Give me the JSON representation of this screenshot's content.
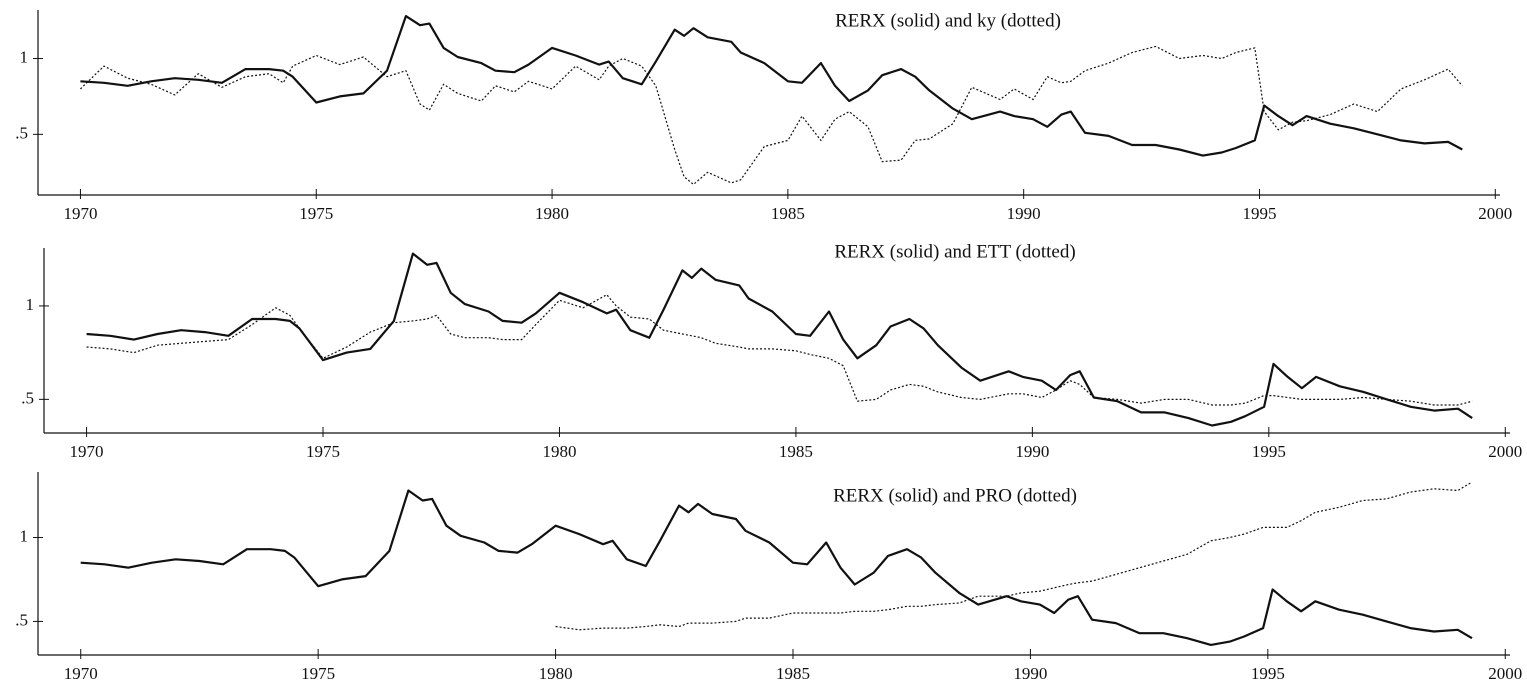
{
  "chart_data": [
    {
      "type": "line",
      "title": "RERX (solid) and ky (dotted)",
      "x": [
        1970,
        1970.5,
        1971,
        1971.5,
        1972,
        1972.5,
        1973,
        1973.5,
        1974,
        1974.3,
        1974.5,
        1975,
        1975.5,
        1976,
        1976.5,
        1976.9,
        1977.2,
        1977.4,
        1977.7,
        1978,
        1978.5,
        1978.8,
        1979.2,
        1979.5,
        1980,
        1980.5,
        1981,
        1981.2,
        1981.5,
        1981.9,
        1982.2,
        1982.6,
        1982.8,
        1983,
        1983.3,
        1983.8,
        1984,
        1984.5,
        1985,
        1985.3,
        1985.7,
        1986,
        1986.3,
        1986.7,
        1987,
        1987.4,
        1987.7,
        1988,
        1988.5,
        1988.9,
        1989.5,
        1989.8,
        1990.2,
        1990.5,
        1990.8,
        1991,
        1991.3,
        1991.8,
        1992.3,
        1992.8,
        1993.3,
        1993.8,
        1994.2,
        1994.5,
        1994.9,
        1995.1,
        1995.4,
        1995.7,
        1996,
        1996.5,
        1997,
        1997.5,
        1998,
        1998.5,
        1999,
        1999.3
      ],
      "series": [
        {
          "color": "#111111",
          "line_style": "solid",
          "values": [
            0.85,
            0.84,
            0.82,
            0.85,
            0.87,
            0.86,
            0.84,
            0.93,
            0.93,
            0.92,
            0.88,
            0.71,
            0.75,
            0.77,
            0.92,
            1.28,
            1.22,
            1.23,
            1.07,
            1.01,
            0.97,
            0.92,
            0.91,
            0.96,
            1.07,
            1.02,
            0.96,
            0.98,
            0.87,
            0.83,
            0.98,
            1.19,
            1.15,
            1.2,
            1.14,
            1.11,
            1.04,
            0.97,
            0.85,
            0.84,
            0.97,
            0.82,
            0.72,
            0.79,
            0.89,
            0.93,
            0.88,
            0.79,
            0.67,
            0.6,
            0.65,
            0.62,
            0.6,
            0.55,
            0.63,
            0.65,
            0.51,
            0.49,
            0.43,
            0.43,
            0.4,
            0.36,
            0.38,
            0.41,
            0.46,
            0.69,
            0.62,
            0.56,
            0.62,
            0.57,
            0.54,
            0.5,
            0.46,
            0.44,
            0.45,
            0.4
          ]
        },
        {
          "color": "#111111",
          "line_style": "dotted",
          "values": [
            0.8,
            0.95,
            0.87,
            0.83,
            0.76,
            0.9,
            0.81,
            0.88,
            0.9,
            0.84,
            0.95,
            1.02,
            0.96,
            1.01,
            0.88,
            0.92,
            0.7,
            0.66,
            0.83,
            0.77,
            0.72,
            0.82,
            0.78,
            0.85,
            0.8,
            0.95,
            0.86,
            0.95,
            1.0,
            0.95,
            0.82,
            0.4,
            0.22,
            0.17,
            0.25,
            0.18,
            0.2,
            0.42,
            0.46,
            0.62,
            0.46,
            0.6,
            0.65,
            0.55,
            0.32,
            0.33,
            0.46,
            0.47,
            0.57,
            0.81,
            0.73,
            0.8,
            0.73,
            0.88,
            0.84,
            0.85,
            0.92,
            0.97,
            1.04,
            1.08,
            1.0,
            1.02,
            1.0,
            1.04,
            1.07,
            0.65,
            0.53,
            0.58,
            0.59,
            0.63,
            0.7,
            0.65,
            0.8,
            0.86,
            0.93,
            0.82
          ]
        }
      ],
      "xlim": [
        1969.1,
        2000.1
      ],
      "xticks": [
        1970,
        1975,
        1980,
        1985,
        1990,
        1995,
        2000
      ],
      "ylim": [
        0.1,
        1.32
      ],
      "yticks": [
        {
          "value": 0.5,
          "label": ".5"
        },
        1
      ]
    },
    {
      "type": "line",
      "title": "RERX (solid) and ETT (dotted)",
      "x": [
        1970,
        1970.5,
        1971,
        1971.5,
        1972,
        1972.5,
        1973,
        1973.5,
        1974,
        1974.3,
        1974.5,
        1975,
        1975.5,
        1976,
        1976.5,
        1976.9,
        1977.2,
        1977.4,
        1977.7,
        1978,
        1978.5,
        1978.8,
        1979.2,
        1979.5,
        1980,
        1980.5,
        1981,
        1981.2,
        1981.5,
        1981.9,
        1982.2,
        1982.6,
        1982.8,
        1983,
        1983.3,
        1983.8,
        1984,
        1984.5,
        1985,
        1985.3,
        1985.7,
        1986,
        1986.3,
        1986.7,
        1987,
        1987.4,
        1987.7,
        1988,
        1988.5,
        1988.9,
        1989.5,
        1989.8,
        1990.2,
        1990.5,
        1990.8,
        1991,
        1991.3,
        1991.8,
        1992.3,
        1992.8,
        1993.3,
        1993.8,
        1994.2,
        1994.5,
        1994.9,
        1995.1,
        1995.4,
        1995.7,
        1996,
        1996.5,
        1997,
        1997.5,
        1998,
        1998.5,
        1999,
        1999.3
      ],
      "series": [
        {
          "color": "#111111",
          "line_style": "solid",
          "values": [
            0.85,
            0.84,
            0.82,
            0.85,
            0.87,
            0.86,
            0.84,
            0.93,
            0.93,
            0.92,
            0.88,
            0.71,
            0.75,
            0.77,
            0.92,
            1.28,
            1.22,
            1.23,
            1.07,
            1.01,
            0.97,
            0.92,
            0.91,
            0.96,
            1.07,
            1.02,
            0.96,
            0.98,
            0.87,
            0.83,
            0.98,
            1.19,
            1.15,
            1.2,
            1.14,
            1.11,
            1.04,
            0.97,
            0.85,
            0.84,
            0.97,
            0.82,
            0.72,
            0.79,
            0.89,
            0.93,
            0.88,
            0.79,
            0.67,
            0.6,
            0.65,
            0.62,
            0.6,
            0.55,
            0.63,
            0.65,
            0.51,
            0.49,
            0.43,
            0.43,
            0.4,
            0.36,
            0.38,
            0.41,
            0.46,
            0.69,
            0.62,
            0.56,
            0.62,
            0.57,
            0.54,
            0.5,
            0.46,
            0.44,
            0.45,
            0.4
          ]
        },
        {
          "color": "#111111",
          "line_style": "dotted",
          "values": [
            0.78,
            0.77,
            0.75,
            0.79,
            0.8,
            0.81,
            0.82,
            0.9,
            0.99,
            0.95,
            0.88,
            0.72,
            0.78,
            0.86,
            0.91,
            0.92,
            0.93,
            0.95,
            0.85,
            0.83,
            0.83,
            0.82,
            0.82,
            0.9,
            1.03,
            0.99,
            1.06,
            1.0,
            0.94,
            0.93,
            0.87,
            0.85,
            0.84,
            0.83,
            0.8,
            0.78,
            0.77,
            0.77,
            0.76,
            0.74,
            0.72,
            0.68,
            0.49,
            0.5,
            0.55,
            0.58,
            0.57,
            0.54,
            0.51,
            0.5,
            0.53,
            0.53,
            0.51,
            0.55,
            0.6,
            0.58,
            0.51,
            0.5,
            0.48,
            0.5,
            0.5,
            0.47,
            0.47,
            0.48,
            0.52,
            0.52,
            0.51,
            0.5,
            0.5,
            0.5,
            0.51,
            0.5,
            0.49,
            0.47,
            0.47,
            0.49
          ]
        }
      ],
      "xlim": [
        1969.1,
        2000.1
      ],
      "xticks": [
        1970,
        1975,
        1980,
        1985,
        1990,
        1995,
        2000
      ],
      "ylim": [
        0.32,
        1.31
      ],
      "yticks": [
        {
          "value": 0.5,
          "label": ".5"
        },
        1
      ]
    },
    {
      "type": "line",
      "title": "RERX (solid) and PRO (dotted)",
      "x": [
        1970,
        1970.5,
        1971,
        1971.5,
        1972,
        1972.5,
        1973,
        1973.5,
        1974,
        1974.3,
        1974.5,
        1975,
        1975.5,
        1976,
        1976.5,
        1976.9,
        1977.2,
        1977.4,
        1977.7,
        1978,
        1978.5,
        1978.8,
        1979.2,
        1979.5,
        1980,
        1980.5,
        1981,
        1981.2,
        1981.5,
        1981.9,
        1982.2,
        1982.6,
        1982.8,
        1983,
        1983.3,
        1983.8,
        1984,
        1984.5,
        1985,
        1985.3,
        1985.7,
        1986,
        1986.3,
        1986.7,
        1987,
        1987.4,
        1987.7,
        1988,
        1988.5,
        1988.9,
        1989.5,
        1989.8,
        1990.2,
        1990.5,
        1990.8,
        1991,
        1991.3,
        1991.8,
        1992.3,
        1992.8,
        1993.3,
        1993.8,
        1994.2,
        1994.5,
        1994.9,
        1995.1,
        1995.4,
        1995.7,
        1996,
        1996.5,
        1997,
        1997.5,
        1998,
        1998.5,
        1999,
        1999.3
      ],
      "series": [
        {
          "color": "#111111",
          "line_style": "solid",
          "values": [
            0.85,
            0.84,
            0.82,
            0.85,
            0.87,
            0.86,
            0.84,
            0.93,
            0.93,
            0.92,
            0.88,
            0.71,
            0.75,
            0.77,
            0.92,
            1.28,
            1.22,
            1.23,
            1.07,
            1.01,
            0.97,
            0.92,
            0.91,
            0.96,
            1.07,
            1.02,
            0.96,
            0.98,
            0.87,
            0.83,
            0.98,
            1.19,
            1.15,
            1.2,
            1.14,
            1.11,
            1.04,
            0.97,
            0.85,
            0.84,
            0.97,
            0.82,
            0.72,
            0.79,
            0.89,
            0.93,
            0.88,
            0.79,
            0.67,
            0.6,
            0.65,
            0.62,
            0.6,
            0.55,
            0.63,
            0.65,
            0.51,
            0.49,
            0.43,
            0.43,
            0.4,
            0.36,
            0.38,
            0.41,
            0.46,
            0.69,
            0.62,
            0.56,
            0.62,
            0.57,
            0.54,
            0.5,
            0.46,
            0.44,
            0.45,
            0.4
          ]
        },
        {
          "color": "#111111",
          "line_style": "dotted",
          "values": [
            null,
            null,
            null,
            null,
            null,
            null,
            null,
            null,
            null,
            null,
            null,
            null,
            null,
            null,
            null,
            null,
            null,
            null,
            null,
            null,
            null,
            null,
            null,
            null,
            0.47,
            0.45,
            0.46,
            0.46,
            0.46,
            0.47,
            0.48,
            0.47,
            0.49,
            0.49,
            0.49,
            0.5,
            0.52,
            0.52,
            0.55,
            0.55,
            0.55,
            0.55,
            0.56,
            0.56,
            0.57,
            0.59,
            0.59,
            0.6,
            0.61,
            0.65,
            0.65,
            0.67,
            0.68,
            0.7,
            0.72,
            0.73,
            0.74,
            0.78,
            0.82,
            0.86,
            0.9,
            0.98,
            1.0,
            1.02,
            1.06,
            1.06,
            1.06,
            1.1,
            1.15,
            1.18,
            1.22,
            1.23,
            1.27,
            1.29,
            1.28,
            1.33
          ]
        }
      ],
      "xlim": [
        1969.1,
        2000.1
      ],
      "xticks": [
        1970,
        1975,
        1980,
        1985,
        1990,
        1995,
        2000
      ],
      "ylim": [
        0.3,
        1.39
      ],
      "yticks": [
        {
          "value": 0.5,
          "label": ".5"
        },
        1
      ]
    }
  ]
}
